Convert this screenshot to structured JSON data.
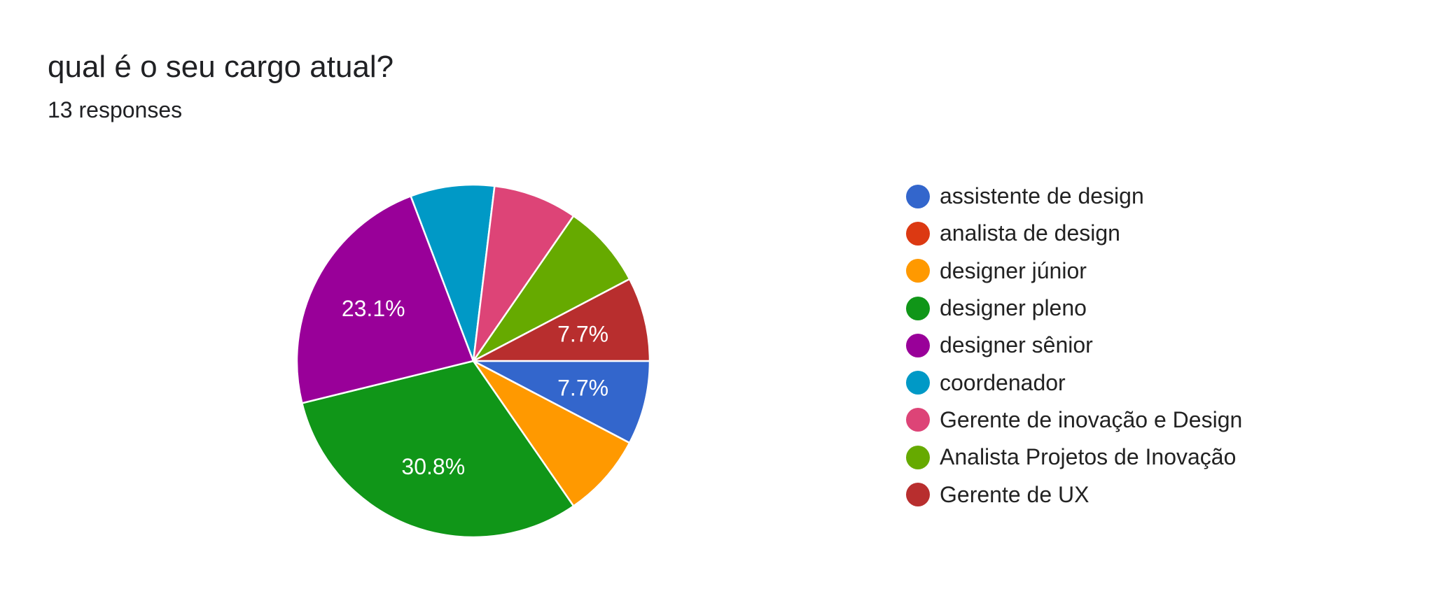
{
  "header": {
    "title": "qual é o seu cargo atual?",
    "responses": "13 responses"
  },
  "chart_data": {
    "type": "pie",
    "title": "qual é o seu cargo atual?",
    "subtitle": "13 responses",
    "legend_position": "right",
    "slices": [
      {
        "label": "assistente de design",
        "value": 1,
        "percent": 7.7,
        "color": "#3366cc",
        "show_label": true
      },
      {
        "label": "analista de design",
        "value": 0,
        "percent": 0,
        "color": "#dc3912",
        "show_label": false
      },
      {
        "label": "designer júnior",
        "value": 1,
        "percent": 7.7,
        "color": "#ff9900",
        "show_label": false
      },
      {
        "label": "designer pleno",
        "value": 4,
        "percent": 30.8,
        "color": "#109618",
        "show_label": true
      },
      {
        "label": "designer sênior",
        "value": 3,
        "percent": 23.1,
        "color": "#990099",
        "show_label": true
      },
      {
        "label": "coordenador",
        "value": 1,
        "percent": 7.7,
        "color": "#0099c6",
        "show_label": false
      },
      {
        "label": "Gerente de inovação e Design",
        "value": 1,
        "percent": 7.7,
        "color": "#dd4477",
        "show_label": false
      },
      {
        "label": "Analista Projetos de Inovação",
        "value": 1,
        "percent": 7.7,
        "color": "#66aa00",
        "show_label": false
      },
      {
        "label": "Gerente de UX",
        "value": 1,
        "percent": 7.7,
        "color": "#b82e2e",
        "show_label": true
      }
    ]
  }
}
